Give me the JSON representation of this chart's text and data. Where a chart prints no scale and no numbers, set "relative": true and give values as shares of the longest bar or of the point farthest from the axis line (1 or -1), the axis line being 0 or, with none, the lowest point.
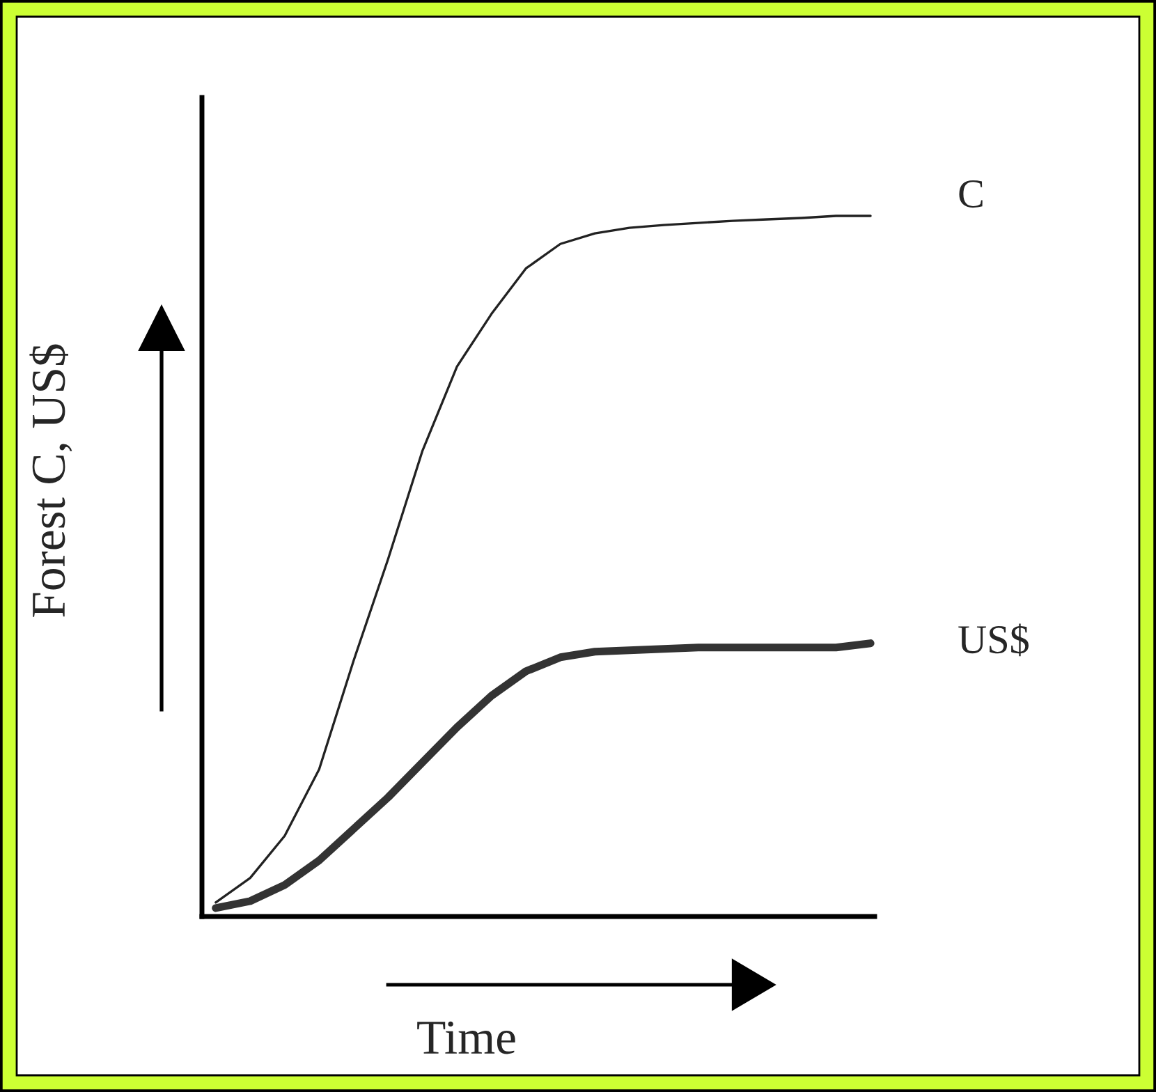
{
  "chart_data": {
    "type": "line",
    "relative": true,
    "xlabel": "Time",
    "ylabel": "Forest C, US$",
    "legend": false,
    "grid": false,
    "categories": [
      null,
      null,
      null,
      null,
      null,
      null,
      null,
      null,
      null,
      null,
      null,
      null,
      null,
      null,
      null,
      null,
      null,
      null,
      null,
      null
    ],
    "series": [
      {
        "name": "C",
        "color": "#222222",
        "values": [
          0.02,
          0.055,
          0.115,
          0.21,
          0.365,
          0.51,
          0.665,
          0.785,
          0.86,
          0.925,
          0.96,
          0.975,
          0.983,
          0.987,
          0.99,
          0.993,
          0.995,
          0.997,
          1,
          1
        ]
      },
      {
        "name": "US$",
        "color": "#333333",
        "values": [
          0.012,
          0.022,
          0.045,
          0.08,
          0.125,
          0.17,
          0.22,
          0.27,
          0.315,
          0.35,
          0.37,
          0.378,
          0.38,
          0.382,
          0.384,
          0.384,
          0.384,
          0.384,
          0.384,
          0.39
        ]
      }
    ]
  }
}
